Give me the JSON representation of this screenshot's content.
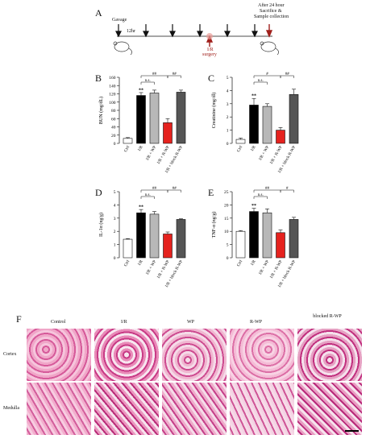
{
  "panel_labels": {
    "A": "A",
    "B": "B",
    "C": "C",
    "D": "D",
    "E": "E",
    "F": "F"
  },
  "timeline": {
    "gavage": "Gavage",
    "interval": "12hr",
    "ir_line1": "I/R",
    "ir_line2": "surgery",
    "after_line1": "After 24 hour",
    "after_line2": "Sacrifice &",
    "after_line3": "Sample collection"
  },
  "chart_data": [
    {
      "type": "bar",
      "panel": "B",
      "ylabel": "BUN (mg/dL)",
      "ylim": [
        0,
        160
      ],
      "yticks": [
        0,
        20,
        40,
        60,
        80,
        100,
        120,
        140,
        160
      ],
      "categories": [
        "Ctrl",
        "I/R",
        "I/R + WP",
        "I/R + R-WP",
        "I/R + block R-WP"
      ],
      "values": [
        12,
        116,
        122,
        50,
        124
      ],
      "errors": [
        2,
        7,
        7,
        10,
        5
      ],
      "colors": [
        "#ffffff",
        "#000000",
        "#b8b8b8",
        "#e5221e",
        "#555555"
      ],
      "markers": [
        "",
        "**",
        "",
        "",
        ""
      ],
      "brackets": [
        {
          "label": "n.s.",
          "from": 1,
          "to": 2,
          "level": 0
        },
        {
          "label": "##",
          "from": 1,
          "to": 3,
          "level": 1
        },
        {
          "label": "##",
          "from": 3,
          "to": 4,
          "level": 1
        }
      ]
    },
    {
      "type": "bar",
      "panel": "C",
      "ylabel": "Creatinine (mg/dl)",
      "ylim": [
        0,
        5
      ],
      "yticks": [
        0,
        1,
        2,
        3,
        4,
        5
      ],
      "categories": [
        "Ctrl",
        "I/R",
        "I/R + WP",
        "I/R + R-WP",
        "I/R + block R-WP"
      ],
      "values": [
        0.3,
        2.9,
        2.8,
        1.0,
        3.7
      ],
      "errors": [
        0.1,
        0.5,
        0.2,
        0.2,
        0.4
      ],
      "colors": [
        "#ffffff",
        "#000000",
        "#b8b8b8",
        "#e5221e",
        "#555555"
      ],
      "markers": [
        "",
        "**",
        "",
        "",
        ""
      ],
      "brackets": [
        {
          "label": "n.s.",
          "from": 1,
          "to": 2,
          "level": 0
        },
        {
          "label": "#",
          "from": 1,
          "to": 3,
          "level": 1
        },
        {
          "label": "##",
          "from": 3,
          "to": 4,
          "level": 1
        }
      ]
    },
    {
      "type": "bar",
      "panel": "D",
      "ylabel": "IL-1α (ng/g)",
      "ylim": [
        0,
        5
      ],
      "yticks": [
        0,
        1,
        2,
        3,
        4,
        5
      ],
      "categories": [
        "Ctrl",
        "I/R",
        "I/R + WP",
        "I/R + R-WP",
        "I/R + block R-WP"
      ],
      "values": [
        1.4,
        3.4,
        3.3,
        1.8,
        2.9
      ],
      "errors": [
        0.05,
        0.25,
        0.2,
        0.15,
        0.05
      ],
      "colors": [
        "#ffffff",
        "#000000",
        "#b8b8b8",
        "#e5221e",
        "#555555"
      ],
      "markers": [
        "",
        "**",
        "",
        "",
        ""
      ],
      "brackets": [
        {
          "label": "n.s.",
          "from": 1,
          "to": 2,
          "level": 0
        },
        {
          "label": "##",
          "from": 1,
          "to": 3,
          "level": 1
        },
        {
          "label": "##",
          "from": 3,
          "to": 4,
          "level": 1
        }
      ]
    },
    {
      "type": "bar",
      "panel": "E",
      "ylabel": "TNF-α (ng/g)",
      "ylim": [
        0,
        25
      ],
      "yticks": [
        0,
        5,
        10,
        15,
        20,
        25
      ],
      "categories": [
        "Ctrl",
        "I/R",
        "I/R + WP",
        "I/R + R-WP",
        "I/R + block R-WP"
      ],
      "values": [
        10,
        17.5,
        17,
        9.5,
        14.5
      ],
      "errors": [
        0.3,
        1.2,
        1.5,
        1.0,
        0.8
      ],
      "colors": [
        "#ffffff",
        "#000000",
        "#b8b8b8",
        "#e5221e",
        "#555555"
      ],
      "markers": [
        "",
        "**",
        "",
        "",
        ""
      ],
      "brackets": [
        {
          "label": "n.s.",
          "from": 1,
          "to": 2,
          "level": 0
        },
        {
          "label": "##",
          "from": 1,
          "to": 3,
          "level": 1
        },
        {
          "label": "#",
          "from": 3,
          "to": 4,
          "level": 1
        }
      ]
    }
  ],
  "histology": {
    "columns": [
      "Control",
      "I/R",
      "WP",
      "R-WP",
      "blocked R-WP"
    ],
    "rows": [
      "Cortex",
      "Medulla"
    ]
  }
}
